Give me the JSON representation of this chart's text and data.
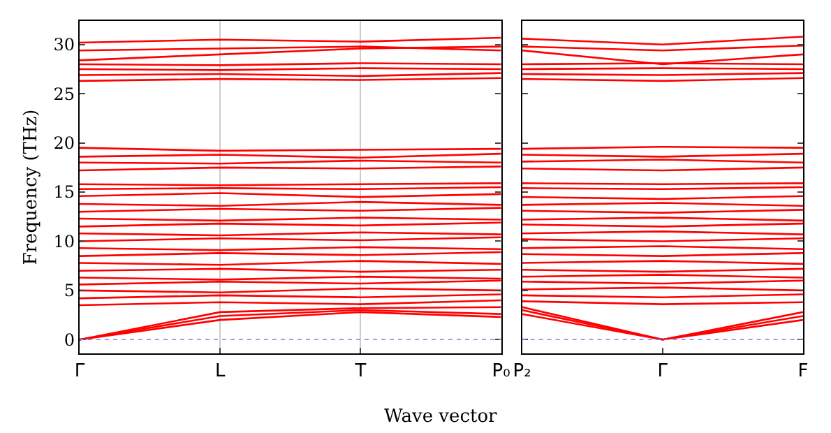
{
  "chart_data": [
    {
      "type": "line",
      "ylabel": "Frequency (THz)",
      "xlabel": "Wave vector",
      "categories": [
        "Γ",
        "L",
        "T",
        "P₀"
      ],
      "ylim": [
        -1.4,
        32.4
      ],
      "yticks": [
        0,
        5,
        10,
        15,
        20,
        25,
        30
      ],
      "grid": "x",
      "marker": "none",
      "line_style": "solid",
      "ref_lines": [
        {
          "axis": "y",
          "value": 0,
          "color": "#8080ff",
          "line_style": "dotted"
        }
      ],
      "series": [
        {
          "color": "#ff0000",
          "values": [
            0,
            2.0,
            2.8,
            2.3
          ]
        },
        {
          "color": "#ff0000",
          "values": [
            0,
            2.4,
            3.0,
            2.6
          ]
        },
        {
          "color": "#ff0000",
          "values": [
            0,
            2.8,
            3.2,
            3.3
          ]
        },
        {
          "color": "#ff0000",
          "values": [
            3.5,
            3.8,
            3.6,
            4.0
          ]
        },
        {
          "color": "#ff0000",
          "values": [
            4.2,
            4.5,
            4.3,
            4.6
          ]
        },
        {
          "color": "#ff0000",
          "values": [
            5.0,
            4.8,
            5.2,
            5.0
          ]
        },
        {
          "color": "#ff0000",
          "values": [
            5.6,
            5.9,
            5.7,
            6.0
          ]
        },
        {
          "color": "#ff0000",
          "values": [
            6.3,
            6.1,
            6.4,
            6.2
          ]
        },
        {
          "color": "#ff0000",
          "values": [
            7.0,
            7.2,
            6.9,
            7.1
          ]
        },
        {
          "color": "#ff0000",
          "values": [
            7.8,
            7.6,
            8.0,
            7.7
          ]
        },
        {
          "color": "#ff0000",
          "values": [
            8.5,
            8.8,
            8.6,
            8.9
          ]
        },
        {
          "color": "#ff0000",
          "values": [
            9.3,
            9.1,
            9.4,
            9.2
          ]
        },
        {
          "color": "#ff0000",
          "values": [
            10.0,
            10.3,
            10.1,
            10.4
          ]
        },
        {
          "color": "#ff0000",
          "values": [
            10.8,
            10.6,
            10.9,
            10.7
          ]
        },
        {
          "color": "#ff0000",
          "values": [
            11.5,
            11.8,
            11.6,
            11.9
          ]
        },
        {
          "color": "#ff0000",
          "values": [
            12.3,
            12.1,
            12.4,
            12.2
          ]
        },
        {
          "color": "#ff0000",
          "values": [
            13.0,
            13.3,
            13.1,
            13.4
          ]
        },
        {
          "color": "#ff0000",
          "values": [
            13.8,
            13.6,
            14.0,
            13.7
          ]
        },
        {
          "color": "#ff0000",
          "values": [
            14.6,
            14.9,
            14.5,
            14.8
          ]
        },
        {
          "color": "#ff0000",
          "values": [
            15.3,
            15.4,
            15.3,
            15.5
          ]
        },
        {
          "color": "#ff0000",
          "values": [
            15.8,
            15.7,
            15.8,
            15.9
          ]
        },
        {
          "color": "#ff0000",
          "values": [
            17.2,
            17.5,
            17.4,
            17.6
          ]
        },
        {
          "color": "#ff0000",
          "values": [
            18.0,
            17.9,
            18.2,
            18.0
          ]
        },
        {
          "color": "#ff0000",
          "values": [
            18.6,
            18.8,
            18.5,
            18.9
          ]
        },
        {
          "color": "#ff0000",
          "values": [
            19.5,
            19.2,
            19.3,
            19.4
          ]
        },
        {
          "color": "#ff0000",
          "values": [
            26.3,
            26.5,
            26.4,
            26.6
          ]
        },
        {
          "color": "#ff0000",
          "values": [
            26.9,
            27.0,
            26.8,
            27.1
          ]
        },
        {
          "color": "#ff0000",
          "values": [
            27.5,
            27.4,
            27.6,
            27.5
          ]
        },
        {
          "color": "#ff0000",
          "values": [
            28.0,
            27.9,
            28.1,
            28.0
          ]
        },
        {
          "color": "#ff0000",
          "values": [
            28.4,
            29.0,
            29.6,
            29.8
          ]
        },
        {
          "color": "#ff0000",
          "values": [
            29.4,
            29.6,
            29.8,
            29.4
          ]
        },
        {
          "color": "#ff0000",
          "values": [
            30.2,
            30.5,
            30.3,
            30.7
          ]
        }
      ]
    },
    {
      "type": "line",
      "categories": [
        "P₂",
        "Γ",
        "F"
      ],
      "ylim": [
        -1.4,
        32.4
      ],
      "yticks": [
        0,
        5,
        10,
        15,
        20,
        25,
        30
      ],
      "tick_labels": "x",
      "marker": "none",
      "line_style": "solid",
      "ref_lines": [
        {
          "axis": "y",
          "value": 0,
          "color": "#8080ff",
          "line_style": "dotted"
        }
      ],
      "series": [
        {
          "color": "#ff0000",
          "values": [
            2.6,
            0,
            2.0
          ]
        },
        {
          "color": "#ff0000",
          "values": [
            3.0,
            0,
            2.4
          ]
        },
        {
          "color": "#ff0000",
          "values": [
            3.3,
            0,
            2.8
          ]
        },
        {
          "color": "#ff0000",
          "values": [
            3.9,
            3.6,
            3.8
          ]
        },
        {
          "color": "#ff0000",
          "values": [
            4.5,
            4.3,
            4.6
          ]
        },
        {
          "color": "#ff0000",
          "values": [
            5.1,
            5.3,
            5.0
          ]
        },
        {
          "color": "#ff0000",
          "values": [
            5.9,
            5.7,
            6.0
          ]
        },
        {
          "color": "#ff0000",
          "values": [
            6.4,
            6.6,
            6.3
          ]
        },
        {
          "color": "#ff0000",
          "values": [
            7.1,
            6.9,
            7.2
          ]
        },
        {
          "color": "#ff0000",
          "values": [
            7.8,
            8.0,
            7.7
          ]
        },
        {
          "color": "#ff0000",
          "values": [
            8.7,
            8.5,
            8.8
          ]
        },
        {
          "color": "#ff0000",
          "values": [
            9.3,
            9.5,
            9.2
          ]
        },
        {
          "color": "#ff0000",
          "values": [
            10.2,
            10.0,
            10.3
          ]
        },
        {
          "color": "#ff0000",
          "values": [
            10.8,
            11.0,
            10.7
          ]
        },
        {
          "color": "#ff0000",
          "values": [
            11.7,
            11.5,
            11.8
          ]
        },
        {
          "color": "#ff0000",
          "values": [
            12.2,
            12.4,
            12.1
          ]
        },
        {
          "color": "#ff0000",
          "values": [
            13.1,
            12.9,
            13.2
          ]
        },
        {
          "color": "#ff0000",
          "values": [
            13.7,
            13.9,
            13.6
          ]
        },
        {
          "color": "#ff0000",
          "values": [
            14.5,
            14.3,
            14.6
          ]
        },
        {
          "color": "#ff0000",
          "values": [
            15.4,
            15.3,
            15.5
          ]
        },
        {
          "color": "#ff0000",
          "values": [
            15.9,
            15.8,
            15.9
          ]
        },
        {
          "color": "#ff0000",
          "values": [
            17.4,
            17.2,
            17.5
          ]
        },
        {
          "color": "#ff0000",
          "values": [
            18.1,
            18.3,
            18.0
          ]
        },
        {
          "color": "#ff0000",
          "values": [
            18.8,
            18.6,
            18.9
          ]
        },
        {
          "color": "#ff0000",
          "values": [
            19.4,
            19.6,
            19.5
          ]
        },
        {
          "color": "#ff0000",
          "values": [
            26.5,
            26.3,
            26.6
          ]
        },
        {
          "color": "#ff0000",
          "values": [
            27.0,
            26.9,
            27.1
          ]
        },
        {
          "color": "#ff0000",
          "values": [
            27.5,
            27.6,
            27.5
          ]
        },
        {
          "color": "#ff0000",
          "values": [
            28.0,
            28.1,
            28.0
          ]
        },
        {
          "color": "#ff0000",
          "values": [
            29.4,
            28.0,
            29.0
          ]
        },
        {
          "color": "#ff0000",
          "values": [
            29.8,
            29.4,
            29.9
          ]
        },
        {
          "color": "#ff0000",
          "values": [
            30.6,
            30.0,
            30.8
          ]
        }
      ]
    }
  ]
}
